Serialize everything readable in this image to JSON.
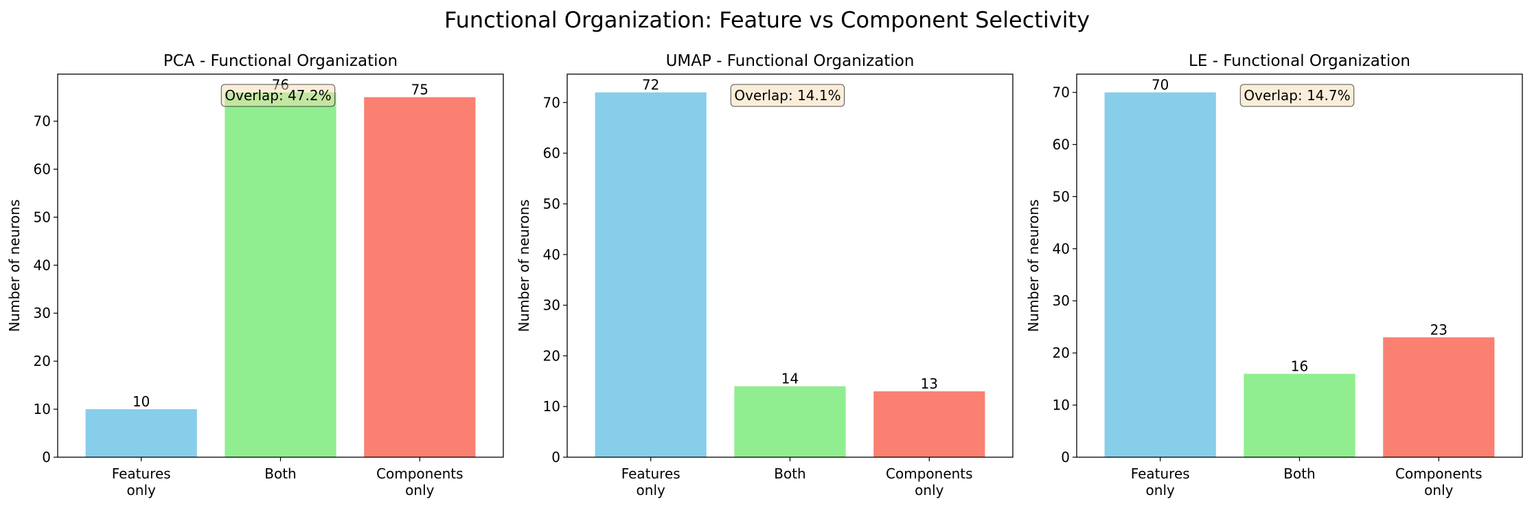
{
  "suptitle": "Functional Organization: Feature vs Component Selectivity",
  "chart_data": [
    {
      "type": "bar",
      "title": "PCA - Functional Organization",
      "categories": [
        "Features\nonly",
        "Both",
        "Components\nonly"
      ],
      "values": [
        10,
        76,
        75
      ],
      "colors": [
        "#87ceeb",
        "#90ee90",
        "#fa8072"
      ],
      "xlabel": "",
      "ylabel": "Number of neurons",
      "ylim": [
        0,
        79.8
      ],
      "yticks": [
        0,
        10,
        20,
        30,
        40,
        50,
        60,
        70
      ],
      "annotation": "Overlap: 47.2%",
      "annotation_box": "#f5deb3",
      "grid": false
    },
    {
      "type": "bar",
      "title": "UMAP - Functional Organization",
      "categories": [
        "Features\nonly",
        "Both",
        "Components\nonly"
      ],
      "values": [
        72,
        14,
        13
      ],
      "colors": [
        "#87ceeb",
        "#90ee90",
        "#fa8072"
      ],
      "xlabel": "",
      "ylabel": "Number of neurons",
      "ylim": [
        0,
        75.6
      ],
      "yticks": [
        0,
        10,
        20,
        30,
        40,
        50,
        60,
        70
      ],
      "annotation": "Overlap: 14.1%",
      "annotation_box": "#f5deb3",
      "grid": false
    },
    {
      "type": "bar",
      "title": "LE - Functional Organization",
      "categories": [
        "Features\nonly",
        "Both",
        "Components\nonly"
      ],
      "values": [
        70,
        16,
        23
      ],
      "colors": [
        "#87ceeb",
        "#90ee90",
        "#fa8072"
      ],
      "xlabel": "",
      "ylabel": "Number of neurons",
      "ylim": [
        0,
        73.5
      ],
      "yticks": [
        0,
        10,
        20,
        30,
        40,
        50,
        60,
        70
      ],
      "annotation": "Overlap: 14.7%",
      "annotation_box": "#f5deb3",
      "grid": false
    }
  ]
}
